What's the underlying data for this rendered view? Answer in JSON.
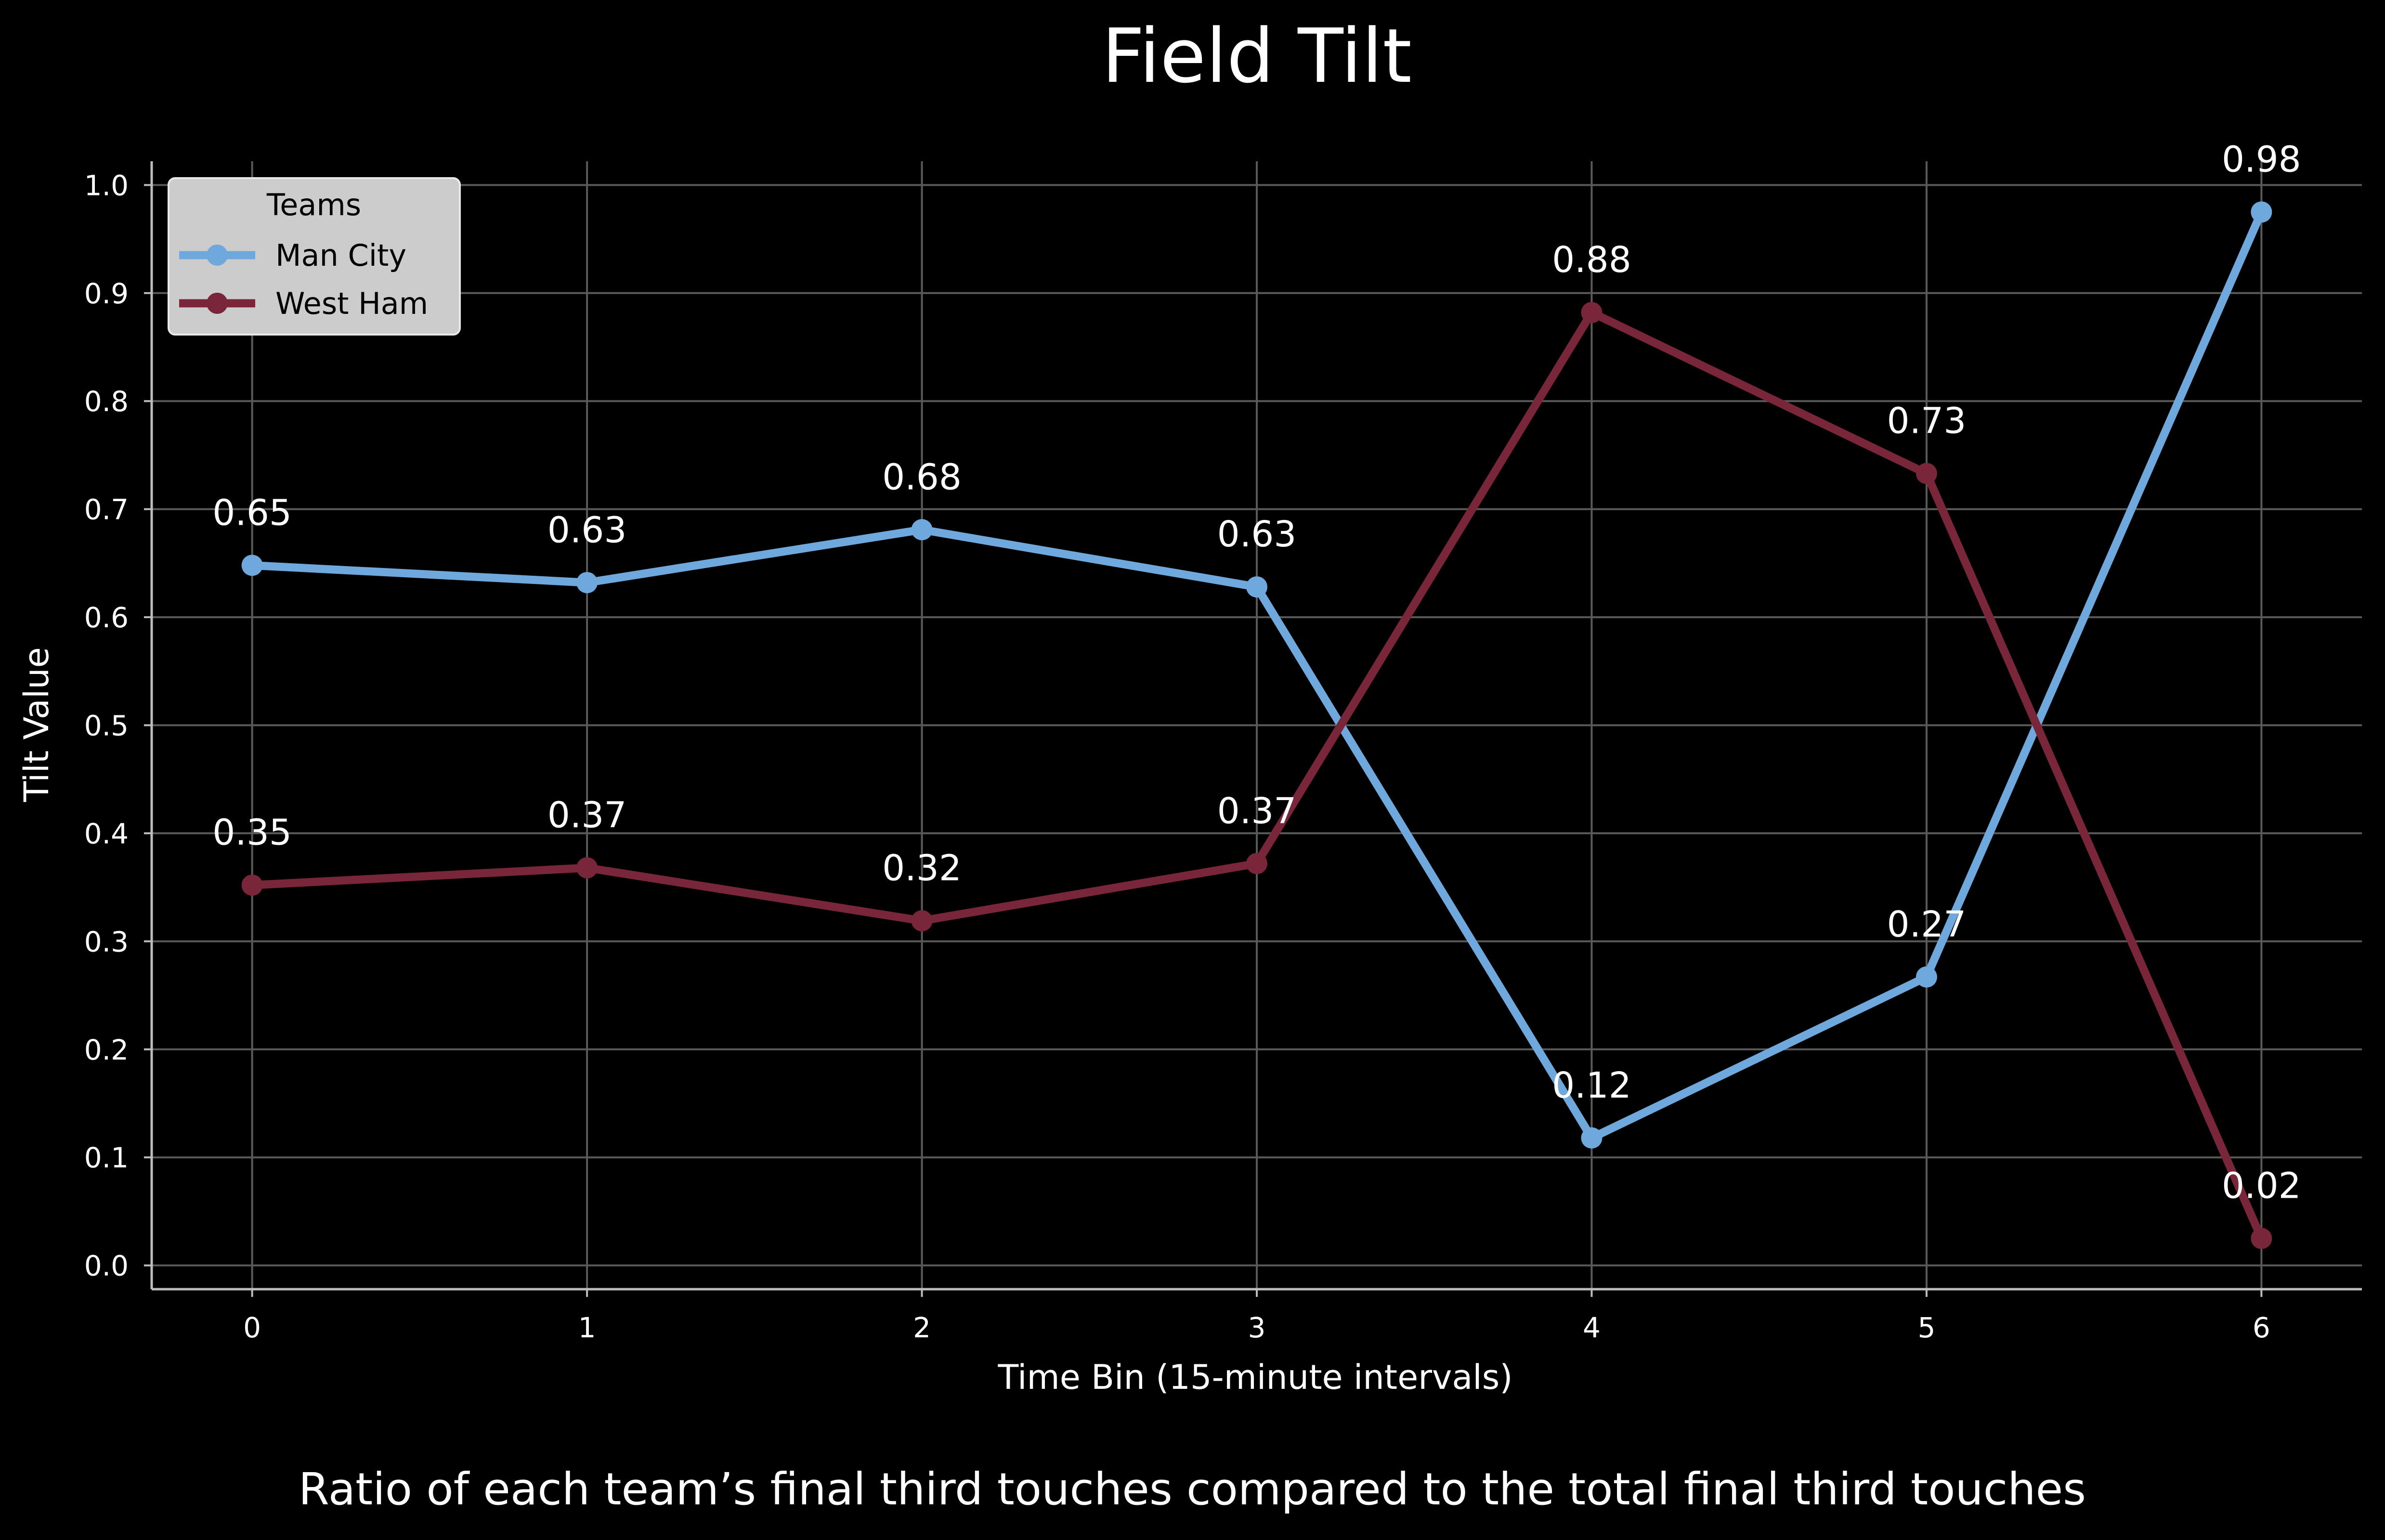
{
  "chart_data": {
    "type": "line",
    "title": "Field Tilt",
    "subtitle": "Ratio of each team’s final third touches compared to the total final third touches",
    "xlabel": "Time Bin (15-minute intervals)",
    "ylabel": "Tilt Value",
    "x": [
      0,
      1,
      2,
      3,
      4,
      5,
      6
    ],
    "xlim": [
      -0.3,
      6.3
    ],
    "ylim": [
      -0.022,
      1.022
    ],
    "yticks": [
      0.0,
      0.1,
      0.2,
      0.3,
      0.4,
      0.5,
      0.6,
      0.7,
      0.8,
      0.9,
      1.0
    ],
    "ytick_labels": [
      "0.0",
      "0.1",
      "0.2",
      "0.3",
      "0.4",
      "0.5",
      "0.6",
      "0.7",
      "0.8",
      "0.9",
      "1.0"
    ],
    "xtick_labels": [
      "0",
      "1",
      "2",
      "3",
      "4",
      "5",
      "6"
    ],
    "grid": true,
    "legend": {
      "title": "Teams",
      "placement": "top-left"
    },
    "series": [
      {
        "name": "Man City",
        "color": "#6fa8dc",
        "values": [
          0.648,
          0.632,
          0.681,
          0.628,
          0.118,
          0.267,
          0.975
        ],
        "labels": [
          "0.65",
          "0.63",
          "0.68",
          "0.63",
          "0.12",
          "0.27",
          "0.98"
        ]
      },
      {
        "name": "West Ham",
        "color": "#7a263a",
        "values": [
          0.352,
          0.368,
          0.319,
          0.372,
          0.882,
          0.733,
          0.025
        ],
        "labels": [
          "0.35",
          "0.37",
          "0.32",
          "0.37",
          "0.88",
          "0.73",
          "0.02"
        ]
      }
    ]
  }
}
